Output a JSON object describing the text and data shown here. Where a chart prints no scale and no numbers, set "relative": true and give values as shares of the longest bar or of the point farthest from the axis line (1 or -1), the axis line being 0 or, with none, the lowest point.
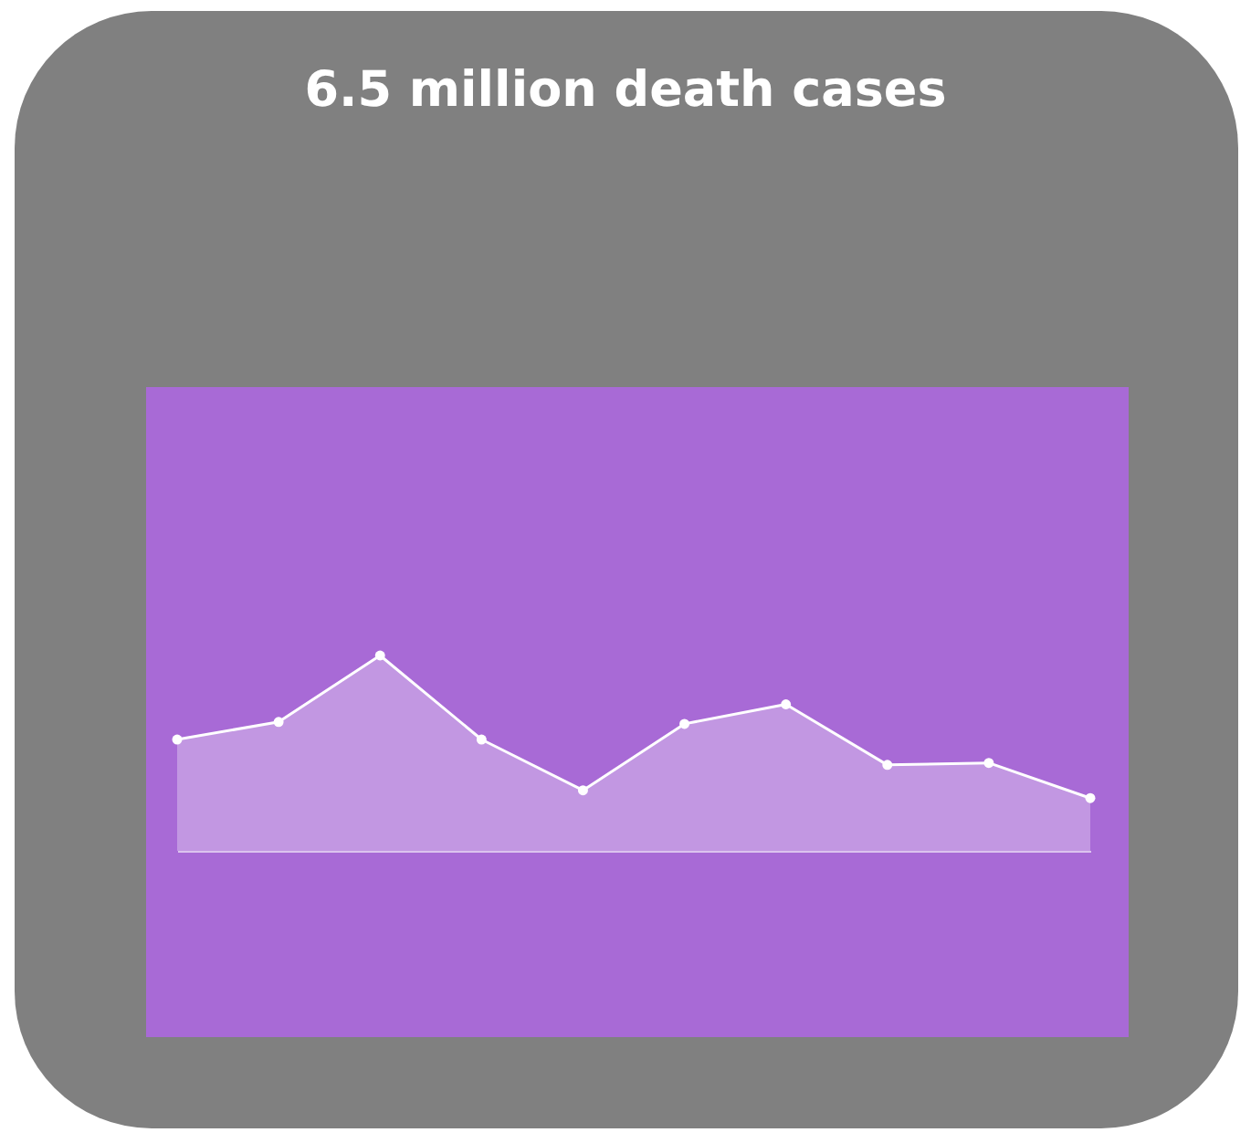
{
  "chart_data": {
    "type": "area",
    "title": "6.5 million death cases",
    "relative": true,
    "categories": [
      null,
      null,
      null,
      null,
      null,
      null,
      null,
      null,
      null,
      null
    ],
    "series": [
      {
        "color": "#ffffff",
        "values": [
          0.57,
          0.66,
          1,
          0.57,
          0.31,
          0.65,
          0.75,
          0.44,
          0.45,
          0.27
        ]
      }
    ],
    "marker": "circle",
    "grid": false
  }
}
